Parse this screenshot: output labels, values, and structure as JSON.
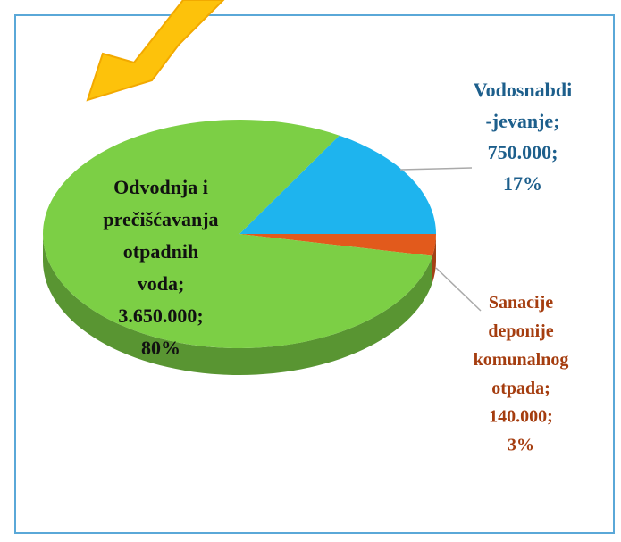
{
  "chart_data": {
    "type": "pie",
    "categories": [
      "Odvodnja i\nprečišćavanja\notpadnih\nvoda;",
      "Vodosnabdi\n-jevanje;",
      "Sanacije\ndeponije\nkomunalnog\notpada;"
    ],
    "values": [
      3650000,
      750000,
      140000
    ],
    "value_labels": [
      "3.650.000;",
      "750.000;",
      "140.000;"
    ],
    "percents": [
      {
        "value": 80,
        "label": "80%"
      },
      {
        "value": 17,
        "label": "17%"
      },
      {
        "value": 3,
        "label": "3%"
      }
    ],
    "colors": [
      "#7ccf45",
      "#1eb4ee",
      "#e25a1c"
    ]
  }
}
